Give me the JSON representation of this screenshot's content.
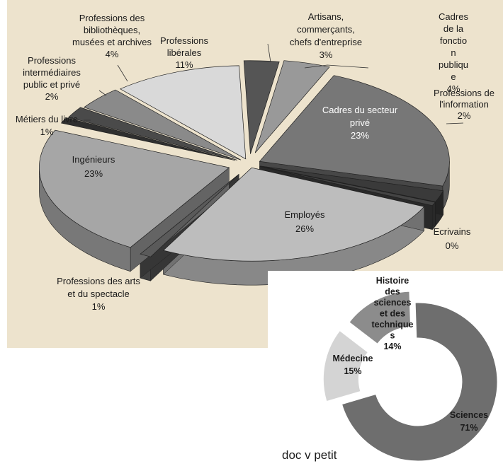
{
  "colors": {
    "panel_background": "#ede3cd",
    "slice_light": "#d8d8d8",
    "slice_light_mid": "#b8b8b8",
    "slice_mid": "#9a9a9a",
    "slice_dark_mid": "#777777",
    "slice_dark": "#5c5c5c",
    "slice_darkest": "#3a3a3a",
    "label_text": "#1a1a1a",
    "label_text_on_dark": "#ffffff"
  },
  "chart_data": [
    {
      "type": "pie",
      "style": "3d-exploded",
      "slices": [
        {
          "label": "Artisans, commerçants, chefs d'entreprise",
          "value": 3,
          "display": "3%",
          "lines": [
            "Artisans,",
            "commerçants,",
            "chefs d'entreprise",
            "3%"
          ],
          "color": "#555555"
        },
        {
          "label": "Cadres de la fonction publique",
          "value": 4,
          "display": "4%",
          "lines": [
            "Cadres",
            "de la",
            "fonctio",
            "n",
            "publiqu",
            "e",
            "4%"
          ],
          "color": "#999999"
        },
        {
          "label": "Cadres du secteur privé",
          "value": 23,
          "display": "23%",
          "lines": [
            "Cadres du secteur",
            "privé",
            "23%"
          ],
          "color": "#777777"
        },
        {
          "label": "Professions de l'information",
          "value": 2,
          "display": "2%",
          "lines": [
            "Professions de",
            "l'information",
            "2%"
          ],
          "color": "#3a3a3a"
        },
        {
          "label": "Ecrivains",
          "value": 0,
          "display": "0%",
          "lines": [
            "Ecrivains",
            "0%"
          ],
          "color": "#444444"
        },
        {
          "label": "Employés",
          "value": 26,
          "display": "26%",
          "lines": [
            "Employés",
            "26%"
          ],
          "color": "#bdbdbd"
        },
        {
          "label": "Professions des arts et du spectacle",
          "value": 1,
          "display": "1%",
          "lines": [
            "Professions des arts",
            "et du spectacle",
            "1%"
          ],
          "color": "#5a5a5a"
        },
        {
          "label": "Ingénieurs",
          "value": 23,
          "display": "23%",
          "lines": [
            "Ingénieurs",
            "23%"
          ],
          "color": "#a6a6a6"
        },
        {
          "label": "Métiers du livre",
          "value": 1,
          "display": "1%",
          "lines": [
            "Métiers du livre",
            "1%"
          ],
          "color": "#2f2f2f"
        },
        {
          "label": "Professions intermédiaires public et privé",
          "value": 2,
          "display": "2%",
          "lines": [
            "Professions",
            "intermédiaires",
            "public et privé",
            "2%"
          ],
          "color": "#4a4a4a"
        },
        {
          "label": "Professions des bibliothèques, musées et archives",
          "value": 4,
          "display": "4%",
          "lines": [
            "Professions des",
            "bibliothèques,",
            "musées et archives",
            "4%"
          ],
          "color": "#8a8a8a"
        },
        {
          "label": "Professions libérales",
          "value": 11,
          "display": "11%",
          "lines": [
            "Professions",
            "libérales",
            "11%"
          ],
          "color": "#d9d9d9"
        }
      ]
    },
    {
      "type": "pie",
      "style": "doughnut-exploded",
      "slices": [
        {
          "label": "Sciences",
          "value": 71,
          "display": "71%",
          "lines": [
            "Sciences",
            "71%"
          ],
          "color": "#6e6e6e"
        },
        {
          "label": "Médecine",
          "value": 15,
          "display": "15%",
          "lines": [
            "Médecine",
            "15%"
          ],
          "color": "#d4d4d4"
        },
        {
          "label": "Histoire des sciences et des techniques",
          "value": 14,
          "display": "14%",
          "lines": [
            "Histoire",
            "des",
            "sciences",
            "et des",
            "technique",
            "s",
            "14%"
          ],
          "color": "#8c8c8c"
        }
      ]
    }
  ],
  "caption": "doc v petit"
}
